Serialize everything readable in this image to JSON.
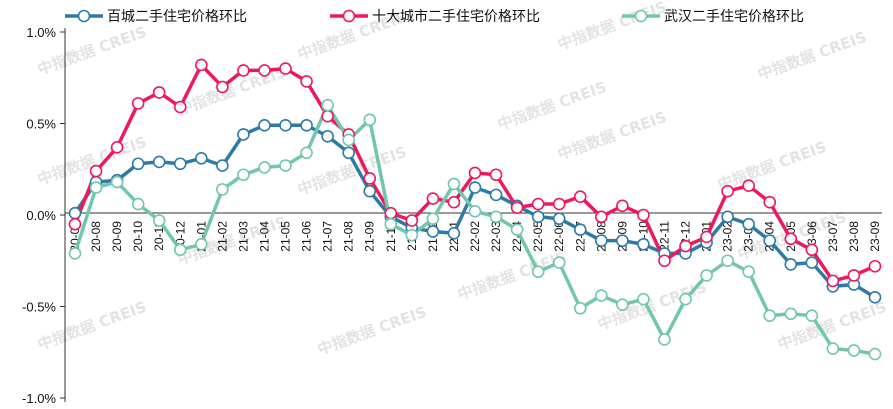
{
  "chart_data": {
    "type": "line",
    "title": "",
    "xlabel": "",
    "ylabel": "",
    "ylim": [
      -0.01,
      0.01
    ],
    "yticks": [
      {
        "value": 0.01,
        "label": "1.0%"
      },
      {
        "value": 0.005,
        "label": "0.5%"
      },
      {
        "value": 0.0,
        "label": "0.0%"
      },
      {
        "value": -0.005,
        "label": "-0.5%"
      },
      {
        "value": -0.01,
        "label": "-1.0%"
      }
    ],
    "grid": false,
    "legend_position": "top",
    "categories": [
      "20-07",
      "20-08",
      "20-09",
      "20-10",
      "20-11",
      "20-12",
      "21-01",
      "21-02",
      "21-03",
      "21-04",
      "21-05",
      "21-06",
      "21-07",
      "21-08",
      "21-09",
      "21-10",
      "21-11",
      "21-12",
      "22-01",
      "22-02",
      "22-03",
      "22-04",
      "22-05",
      "22-06",
      "22-07",
      "22-08",
      "22-09",
      "22-10",
      "22-11",
      "22-12",
      "23-01",
      "23-02",
      "23-03",
      "23-04",
      "23-05",
      "23-06",
      "23-07",
      "23-08",
      "23-09"
    ],
    "series": [
      {
        "name": "百城二手住宅价格环比",
        "color": "#2e7aa6",
        "values": [
          0.0001,
          0.0018,
          0.0019,
          0.0028,
          0.0029,
          0.0028,
          0.0031,
          0.0027,
          0.0044,
          0.0049,
          0.0049,
          0.0049,
          0.0043,
          0.0034,
          0.0013,
          -0.0001,
          -0.0007,
          -0.0009,
          -0.001,
          0.0015,
          0.0011,
          0.0005,
          -0.0001,
          -0.0002,
          -0.0008,
          -0.0014,
          -0.0014,
          -0.0016,
          -0.0021,
          -0.0021,
          -0.0015,
          -0.0001,
          -0.0005,
          -0.0014,
          -0.0027,
          -0.0026,
          -0.0039,
          -0.0038,
          -0.0045
        ]
      },
      {
        "name": "十大城市二手住宅价格环比",
        "color": "#f0185c",
        "values": [
          -0.0005,
          0.0024,
          0.0037,
          0.0061,
          0.0067,
          0.0059,
          0.0082,
          0.007,
          0.0079,
          0.0079,
          0.008,
          0.0073,
          0.0054,
          0.0044,
          0.002,
          0.0001,
          -0.0003,
          0.0009,
          0.0007,
          0.0023,
          0.0022,
          0.0004,
          0.0006,
          0.0006,
          0.001,
          -0.0001,
          0.0005,
          0.0,
          -0.0025,
          -0.0017,
          -0.0012,
          0.0013,
          0.0016,
          0.0007,
          -0.0013,
          -0.0019,
          -0.0036,
          -0.0033,
          -0.0028
        ]
      },
      {
        "name": "武汉二手住宅价格环比",
        "color": "#72c6ad",
        "values": [
          -0.0021,
          0.0015,
          0.0018,
          0.0006,
          -0.0003,
          -0.0019,
          -0.0016,
          0.0014,
          0.0022,
          0.0026,
          0.0027,
          0.0034,
          0.006,
          0.0041,
          0.0052,
          -0.0005,
          -0.0011,
          -0.0002,
          0.0017,
          0.0002,
          -0.0001,
          -0.0008,
          -0.0031,
          -0.0026,
          -0.0051,
          -0.0044,
          -0.0049,
          -0.0046,
          -0.0068,
          -0.0046,
          -0.0033,
          -0.0025,
          -0.0031,
          -0.0055,
          -0.0054,
          -0.0055,
          -0.0073,
          -0.0074,
          -0.0076
        ]
      }
    ],
    "watermark": "中指数据  CREIS"
  }
}
